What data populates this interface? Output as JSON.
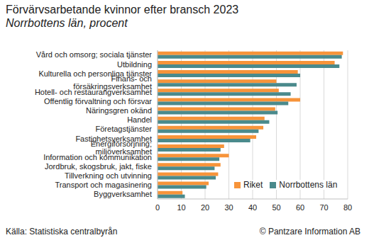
{
  "chart_data": {
    "type": "bar",
    "orientation": "horizontal",
    "title": "Förvärvsarbetande kvinnor efter bransch 2023",
    "subtitle": "Norrbottens län, procent",
    "source": "Källa: Statistiska centralbyrån",
    "credit": "© Pantzare Information AB",
    "categories": [
      "Vård och omsorg; sociala tjänster",
      "Utbildning",
      "Kulturella och personliga tjänster",
      "Finans- och försäkringsverksamhet",
      "Hotell- och restaurangverksamhet",
      "Offentlig förvaltning och försvar",
      "Näringsgren okänd",
      "Handel",
      "Företagstjänster",
      "Fastighetsverksamhet",
      "Energiförsörjning; miljöverksamhet",
      "Information och kommunikation",
      "Jordbruk, skogsbruk, jakt, fiske",
      "Tillverkning och utvinning",
      "Transport och magasinering",
      "Byggverksamhet"
    ],
    "series": [
      {
        "name": "Riket",
        "color": "#f7943a",
        "values": [
          78,
          74.5,
          59,
          50,
          51,
          60,
          49.5,
          45,
          44.5,
          41.5,
          28,
          30,
          26.5,
          25.5,
          21.5,
          10.5
        ]
      },
      {
        "name": "Norrbottens län",
        "color": "#4a8a8c",
        "values": [
          77.5,
          76.5,
          60,
          58.5,
          56,
          55,
          50.5,
          47,
          42.5,
          39,
          26.5,
          26,
          24,
          24.5,
          20.5,
          11.5
        ]
      }
    ],
    "xlim": [
      0,
      80
    ],
    "xticks": [
      0,
      10,
      20,
      30,
      40,
      50,
      60,
      70,
      80
    ],
    "grid": true,
    "legend": "lower right"
  }
}
